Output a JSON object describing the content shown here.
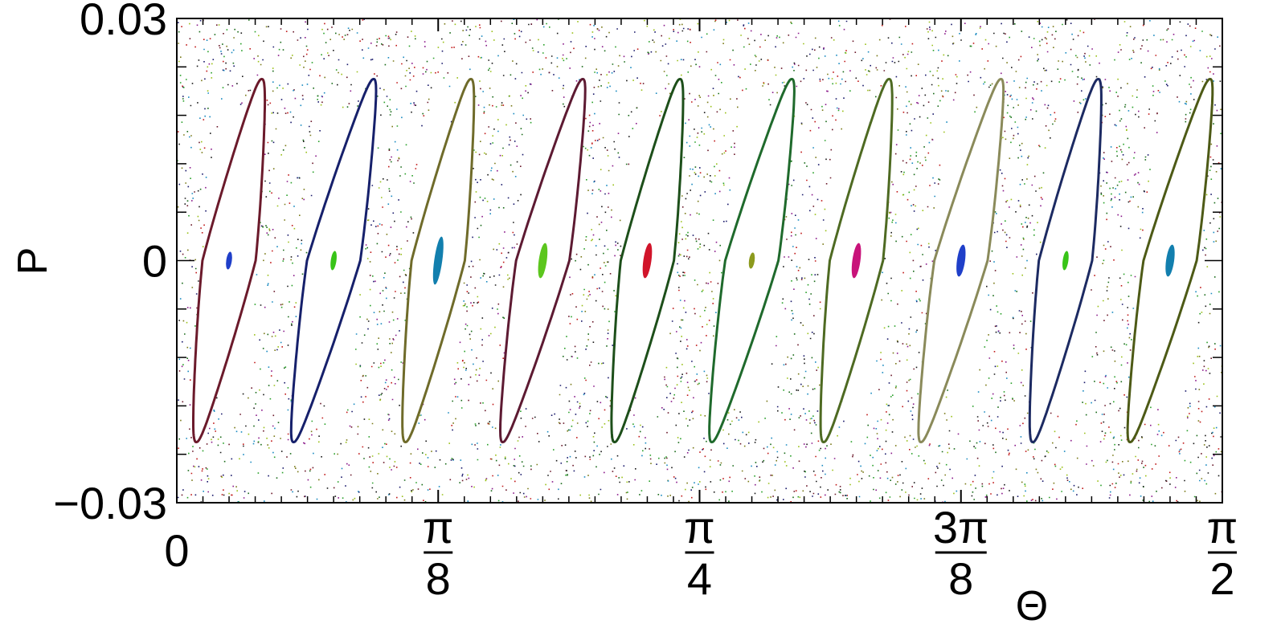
{
  "chart_data": {
    "type": "scatter",
    "title": "",
    "xlabel": "Θ",
    "ylabel": "P",
    "xlim": [
      0,
      1.5708
    ],
    "ylim": [
      -0.03,
      0.03
    ],
    "grid": false,
    "legend": "none",
    "x_tick_labels": [
      {
        "value": 0,
        "num": "0",
        "den": ""
      },
      {
        "value": 0.3927,
        "num": "π",
        "den": "8"
      },
      {
        "value": 0.7854,
        "num": "π",
        "den": "4"
      },
      {
        "value": 1.1781,
        "num": "3π",
        "den": "8"
      },
      {
        "value": 1.5708,
        "num": "π",
        "den": "2"
      }
    ],
    "y_tick_labels": [
      {
        "value": 0.03,
        "label": "0.03"
      },
      {
        "value": 0,
        "label": "0"
      },
      {
        "value": -0.03,
        "label": "−0.03"
      }
    ],
    "islands": [
      {
        "center": 0.0785,
        "half_height": 0.0225,
        "half_width": 0.04,
        "outline_color": "#6b1a2b",
        "core_color": "#1f3fc9",
        "core_half_height": 0.0011
      },
      {
        "center": 0.2356,
        "half_height": 0.0225,
        "half_width": 0.04,
        "outline_color": "#16206b",
        "core_color": "#38c418",
        "core_half_height": 0.0012
      },
      {
        "center": 0.3927,
        "half_height": 0.0225,
        "half_width": 0.04,
        "outline_color": "#6f6b2a",
        "core_color": "#127fae",
        "core_half_height": 0.003
      },
      {
        "center": 0.5498,
        "half_height": 0.0225,
        "half_width": 0.04,
        "outline_color": "#5d1a32",
        "core_color": "#5cc61e",
        "core_half_height": 0.0022
      },
      {
        "center": 0.7069,
        "half_height": 0.0225,
        "half_width": 0.04,
        "outline_color": "#1d4f1a",
        "core_color": "#d1142a",
        "core_half_height": 0.0022
      },
      {
        "center": 0.8639,
        "half_height": 0.0225,
        "half_width": 0.04,
        "outline_color": "#1f6a2c",
        "core_color": "#8c9a1e",
        "core_half_height": 0.001
      },
      {
        "center": 1.021,
        "half_height": 0.0225,
        "half_width": 0.04,
        "outline_color": "#4e6a22",
        "core_color": "#c8137a",
        "core_half_height": 0.0022
      },
      {
        "center": 1.1781,
        "half_height": 0.0225,
        "half_width": 0.04,
        "outline_color": "#8a8a5a",
        "core_color": "#1f3fc9",
        "core_half_height": 0.002
      },
      {
        "center": 1.3352,
        "half_height": 0.0225,
        "half_width": 0.04,
        "outline_color": "#1c2a62",
        "core_color": "#38c418",
        "core_half_height": 0.0012
      },
      {
        "center": 1.4923,
        "half_height": 0.0225,
        "half_width": 0.04,
        "outline_color": "#4d5a16",
        "core_color": "#127fae",
        "core_half_height": 0.002
      }
    ],
    "chaos_colors": [
      "#1a1a6b",
      "#6b1a2b",
      "#2aa02a",
      "#7a7a1a",
      "#1a6b1a",
      "#c01a1a",
      "#1a8ac0",
      "#8a1a8a",
      "#9ac01a",
      "#1a1a1a"
    ]
  }
}
